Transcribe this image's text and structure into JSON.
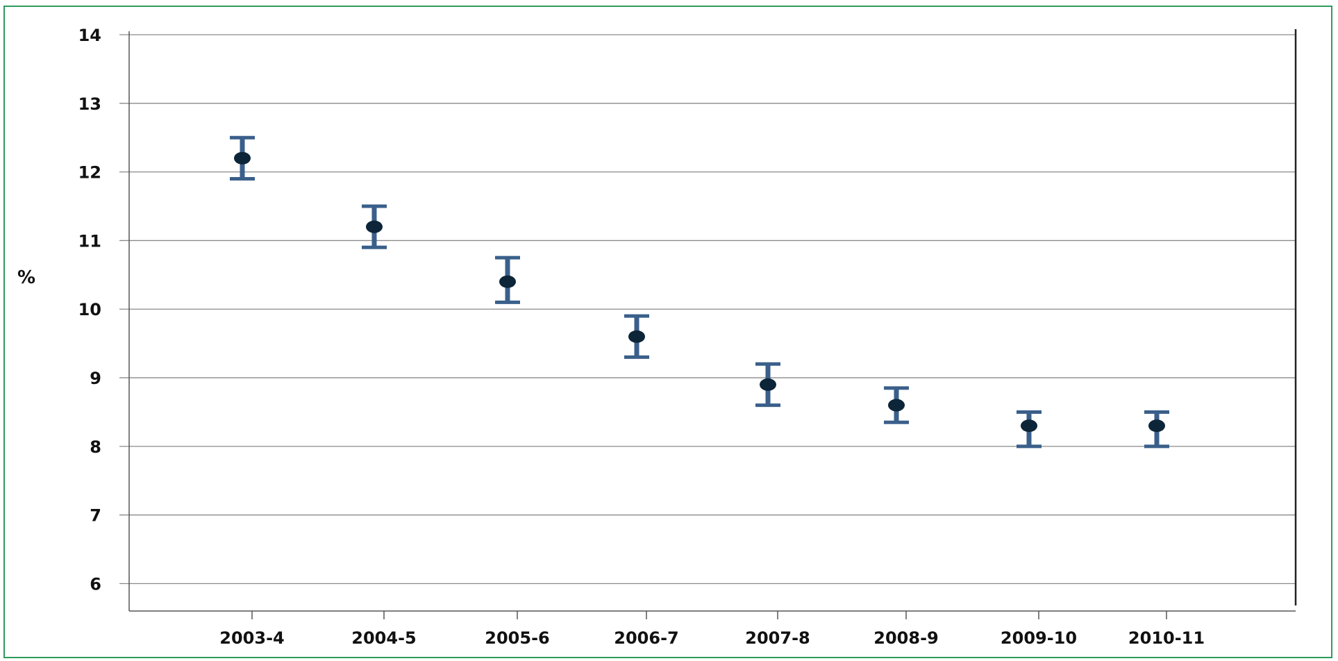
{
  "chart_data": {
    "type": "scatter",
    "ylabel": "%",
    "xlabel": "",
    "title": "",
    "ylim": [
      5.6,
      14.0
    ],
    "yticks": [
      6,
      7,
      8,
      9,
      10,
      11,
      12,
      13,
      14
    ],
    "grid": true,
    "categories": [
      "2003-4",
      "2004-5",
      "2005-6",
      "2006-7",
      "2007-8",
      "2008-9",
      "2009-10",
      "2010-11"
    ],
    "series": [
      {
        "values": [
          12.2,
          11.2,
          10.4,
          9.6,
          8.9,
          8.6,
          8.3,
          8.3
        ],
        "lower": [
          11.9,
          10.9,
          10.1,
          9.3,
          8.6,
          8.35,
          8.0,
          8.0
        ],
        "upper": [
          12.5,
          11.5,
          10.75,
          9.9,
          9.2,
          8.85,
          8.5,
          8.5
        ]
      }
    ],
    "colors": {
      "errorbar": "#3a5f8a",
      "point": "#0d2538",
      "grid": "#8a8a8a",
      "frame": "#2e9a5a"
    }
  }
}
